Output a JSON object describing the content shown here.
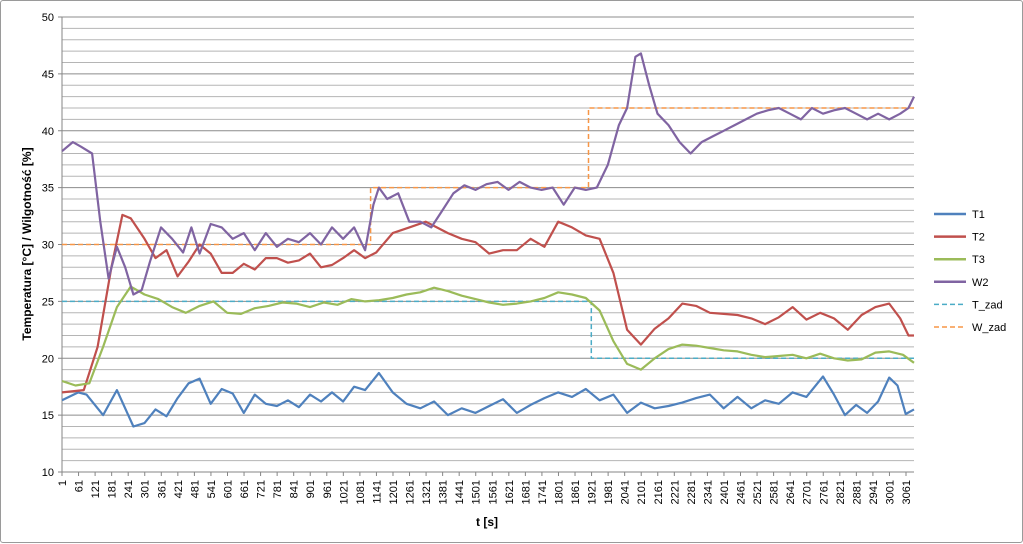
{
  "chart_data": {
    "type": "line",
    "title": "",
    "xlabel": "t [s]",
    "ylabel": "Temperatura [°C] / Wilgotność [%]",
    "ylim": [
      10,
      50
    ],
    "yticks": [
      10,
      15,
      20,
      25,
      30,
      35,
      40,
      45,
      50
    ],
    "xlim": [
      1,
      3090
    ],
    "xticks": [
      1,
      61,
      121,
      181,
      241,
      301,
      361,
      421,
      481,
      541,
      601,
      661,
      721,
      781,
      841,
      901,
      961,
      1021,
      1081,
      1141,
      1201,
      1261,
      1321,
      1381,
      1441,
      1501,
      1561,
      1621,
      1681,
      1741,
      1801,
      1861,
      1921,
      1981,
      2041,
      2101,
      2161,
      2221,
      2281,
      2341,
      2401,
      2461,
      2521,
      2581,
      2641,
      2701,
      2761,
      2821,
      2881,
      2941,
      3001,
      3061
    ],
    "grid": true,
    "legend_position": "right",
    "series": [
      {
        "name": "T1",
        "color": "#4f81bd",
        "dash": "solid",
        "x": [
          1,
          60,
          90,
          150,
          200,
          260,
          300,
          340,
          380,
          420,
          460,
          500,
          540,
          580,
          620,
          660,
          700,
          740,
          780,
          820,
          860,
          900,
          940,
          980,
          1020,
          1060,
          1100,
          1150,
          1200,
          1250,
          1300,
          1350,
          1400,
          1450,
          1500,
          1550,
          1600,
          1650,
          1700,
          1750,
          1800,
          1850,
          1900,
          1950,
          2000,
          2050,
          2100,
          2150,
          2200,
          2250,
          2300,
          2350,
          2400,
          2450,
          2500,
          2550,
          2600,
          2650,
          2700,
          2760,
          2800,
          2840,
          2880,
          2920,
          2960,
          3000,
          3030,
          3060,
          3090
        ],
        "y": [
          16.3,
          17.0,
          16.8,
          15.0,
          17.2,
          14.0,
          14.3,
          15.5,
          14.9,
          16.5,
          17.8,
          18.2,
          16.0,
          17.3,
          16.9,
          15.2,
          16.8,
          16.0,
          15.8,
          16.3,
          15.7,
          16.8,
          16.2,
          17.0,
          16.2,
          17.5,
          17.2,
          18.7,
          17.0,
          16.0,
          15.6,
          16.2,
          15.0,
          15.6,
          15.2,
          15.8,
          16.4,
          15.2,
          15.9,
          16.5,
          17.0,
          16.6,
          17.3,
          16.3,
          16.8,
          15.2,
          16.1,
          15.6,
          15.8,
          16.1,
          16.5,
          16.8,
          15.6,
          16.6,
          15.6,
          16.3,
          16.0,
          17.0,
          16.6,
          18.4,
          16.8,
          15.0,
          15.9,
          15.2,
          16.2,
          18.3,
          17.6,
          15.1,
          15.5
        ]
      },
      {
        "name": "T2",
        "color": "#c0504d",
        "dash": "solid",
        "x": [
          1,
          80,
          130,
          180,
          220,
          250,
          300,
          340,
          380,
          420,
          460,
          500,
          540,
          580,
          620,
          660,
          700,
          740,
          780,
          820,
          860,
          900,
          940,
          980,
          1020,
          1060,
          1100,
          1140,
          1200,
          1260,
          1320,
          1360,
          1400,
          1450,
          1500,
          1550,
          1600,
          1650,
          1700,
          1750,
          1800,
          1850,
          1900,
          1950,
          2000,
          2050,
          2100,
          2150,
          2200,
          2250,
          2300,
          2350,
          2400,
          2450,
          2500,
          2550,
          2600,
          2650,
          2700,
          2750,
          2800,
          2850,
          2900,
          2950,
          3000,
          3040,
          3070,
          3090
        ],
        "y": [
          17.0,
          17.2,
          21.0,
          28.0,
          32.6,
          32.3,
          30.5,
          28.8,
          29.5,
          27.2,
          28.5,
          30.0,
          29.2,
          27.5,
          27.5,
          28.3,
          27.8,
          28.8,
          28.8,
          28.4,
          28.6,
          29.2,
          28.0,
          28.2,
          28.8,
          29.5,
          28.8,
          29.3,
          31.0,
          31.5,
          32.0,
          31.5,
          31.0,
          30.5,
          30.2,
          29.2,
          29.5,
          29.5,
          30.5,
          29.8,
          32.0,
          31.5,
          30.8,
          30.5,
          27.5,
          22.5,
          21.2,
          22.6,
          23.5,
          24.8,
          24.6,
          24.0,
          23.9,
          23.8,
          23.5,
          23.0,
          23.6,
          24.5,
          23.4,
          24.0,
          23.5,
          22.5,
          23.8,
          24.5,
          24.8,
          23.5,
          22.0,
          22.0
        ]
      },
      {
        "name": "T3",
        "color": "#9bbb59",
        "dash": "solid",
        "x": [
          1,
          50,
          100,
          150,
          200,
          250,
          300,
          350,
          400,
          450,
          500,
          550,
          600,
          650,
          700,
          750,
          800,
          850,
          900,
          950,
          1000,
          1050,
          1100,
          1150,
          1200,
          1250,
          1300,
          1350,
          1400,
          1450,
          1500,
          1550,
          1600,
          1650,
          1700,
          1750,
          1800,
          1850,
          1900,
          1950,
          2000,
          2050,
          2100,
          2150,
          2200,
          2250,
          2300,
          2350,
          2400,
          2450,
          2500,
          2550,
          2600,
          2650,
          2700,
          2750,
          2800,
          2850,
          2900,
          2950,
          3000,
          3050,
          3090
        ],
        "y": [
          18.0,
          17.6,
          17.8,
          21.0,
          24.5,
          26.3,
          25.6,
          25.2,
          24.5,
          24.0,
          24.6,
          25.0,
          24.0,
          23.9,
          24.4,
          24.6,
          24.9,
          24.8,
          24.5,
          24.9,
          24.7,
          25.2,
          25.0,
          25.1,
          25.3,
          25.6,
          25.8,
          26.2,
          25.9,
          25.5,
          25.2,
          24.9,
          24.7,
          24.8,
          25.0,
          25.3,
          25.8,
          25.6,
          25.3,
          24.2,
          21.5,
          19.5,
          19.0,
          20.0,
          20.8,
          21.2,
          21.1,
          20.9,
          20.7,
          20.6,
          20.3,
          20.1,
          20.2,
          20.3,
          20.0,
          20.4,
          20.0,
          19.8,
          19.9,
          20.5,
          20.6,
          20.3,
          19.6
        ]
      },
      {
        "name": "W2",
        "color": "#8064a2",
        "dash": "solid",
        "x": [
          1,
          40,
          70,
          110,
          140,
          170,
          200,
          230,
          260,
          290,
          320,
          360,
          400,
          440,
          470,
          500,
          540,
          580,
          620,
          660,
          700,
          740,
          780,
          820,
          860,
          900,
          940,
          980,
          1020,
          1060,
          1100,
          1130,
          1150,
          1180,
          1220,
          1260,
          1300,
          1340,
          1380,
          1420,
          1460,
          1500,
          1540,
          1580,
          1620,
          1660,
          1700,
          1740,
          1780,
          1820,
          1860,
          1900,
          1940,
          1980,
          2020,
          2050,
          2080,
          2100,
          2130,
          2160,
          2200,
          2240,
          2280,
          2320,
          2360,
          2400,
          2440,
          2480,
          2520,
          2560,
          2600,
          2640,
          2680,
          2720,
          2760,
          2800,
          2840,
          2880,
          2920,
          2960,
          3000,
          3040,
          3070,
          3090
        ],
        "y": [
          38.2,
          39.0,
          38.6,
          38.0,
          32.0,
          27.0,
          29.8,
          28.0,
          25.6,
          26.0,
          28.5,
          31.5,
          30.5,
          29.3,
          31.5,
          29.2,
          31.8,
          31.5,
          30.5,
          31.0,
          29.5,
          31.0,
          29.8,
          30.5,
          30.2,
          31.0,
          30.0,
          31.5,
          30.5,
          31.5,
          29.5,
          33.5,
          35.0,
          34.0,
          34.5,
          32.0,
          32.0,
          31.5,
          33.0,
          34.5,
          35.2,
          34.8,
          35.3,
          35.5,
          34.8,
          35.5,
          35.0,
          34.8,
          35.0,
          33.5,
          35.0,
          34.8,
          35.0,
          37.0,
          40.5,
          42.0,
          46.5,
          46.8,
          44.0,
          41.5,
          40.5,
          39.0,
          38.0,
          39.0,
          39.5,
          40.0,
          40.5,
          41.0,
          41.5,
          41.8,
          42.0,
          41.5,
          41.0,
          42.0,
          41.5,
          41.8,
          42.0,
          41.5,
          41.0,
          41.5,
          41.0,
          41.5,
          42.0,
          43.0
        ]
      },
      {
        "name": "T_zad",
        "color": "#4bacc6",
        "dash": "dashed",
        "x": [
          1,
          1920,
          1920,
          3090
        ],
        "y": [
          25,
          25,
          20,
          20
        ]
      },
      {
        "name": "W_zad",
        "color": "#f79646",
        "dash": "dashed",
        "x": [
          1,
          1120,
          1120,
          1910,
          1910,
          3090
        ],
        "y": [
          30,
          30,
          35,
          35,
          42,
          42
        ]
      }
    ]
  }
}
